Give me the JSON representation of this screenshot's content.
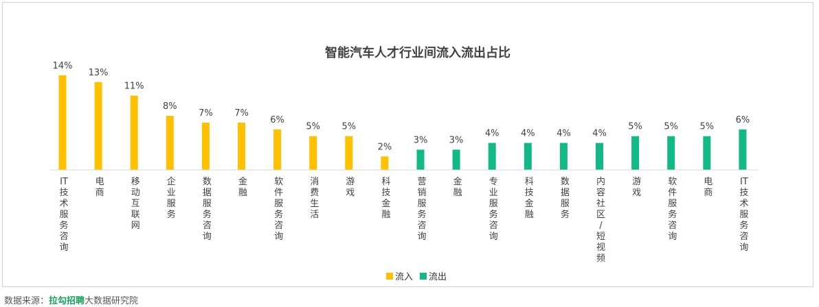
{
  "chart_data": {
    "type": "bar",
    "title": "智能汽车人才行业间流入流出占比",
    "series": [
      {
        "name": "流入",
        "color": "#ffc000",
        "categories": [
          "IT技术服务咨询",
          "电商",
          "移动互联网",
          "企业服务",
          "数据服务咨询",
          "金融",
          "软件服务咨询",
          "消费生活",
          "游戏",
          "科技金融"
        ],
        "values": [
          14,
          13,
          11,
          8,
          7,
          7,
          6,
          5,
          5,
          2
        ],
        "labels": [
          "14%",
          "13%",
          "11%",
          "8%",
          "7%",
          "7%",
          "6%",
          "5%",
          "5%",
          "2%"
        ]
      },
      {
        "name": "流出",
        "color": "#12b886",
        "categories": [
          "营销服务咨询",
          "金融",
          "专业服务咨询",
          "科技金融",
          "数据服务",
          "内容社区/短视频",
          "游戏",
          "软件服务咨询",
          "电商",
          "IT技术服务咨询"
        ],
        "values": [
          3,
          3,
          4,
          4,
          4,
          4,
          5,
          5,
          5,
          6
        ],
        "labels": [
          "3%",
          "3%",
          "4%",
          "4%",
          "4%",
          "4%",
          "5%",
          "5%",
          "5%",
          "6%"
        ]
      }
    ],
    "unit": "%",
    "legend_position": "bottom",
    "grid": false
  },
  "source": {
    "prefix": "数据来源：",
    "brand": "拉勾招聘",
    "suffix": "大数据研究院"
  }
}
